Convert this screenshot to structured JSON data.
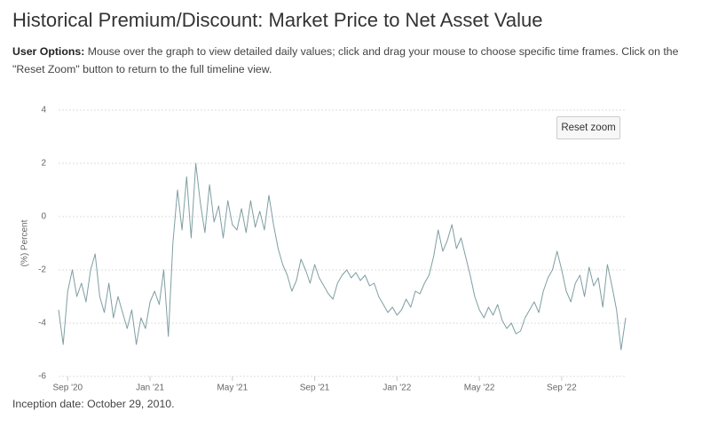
{
  "title": "Historical Premium/Discount: Market Price to Net Asset Value",
  "user_options": {
    "label": "User Options:",
    "text": "Mouse over the graph to view detailed daily values; click and drag your mouse to choose specific time frames. Click on the \"Reset Zoom\" button to return to the full timeline view."
  },
  "reset_button": "Reset zoom",
  "inception": "Inception date: October 29, 2010.",
  "chart_data": {
    "type": "line",
    "ylabel": "(%) Percent",
    "color": "#7f9ea2",
    "grid": true,
    "ylim": [
      -6,
      4
    ],
    "yticks": [
      -6,
      -4,
      -2,
      0,
      2,
      4
    ],
    "categories": [
      null,
      null,
      "Sep '20",
      null,
      null,
      null,
      null,
      null,
      null,
      null,
      null,
      null,
      null,
      null,
      null,
      null,
      null,
      null,
      null,
      null,
      "Jan '21",
      null,
      null,
      null,
      null,
      null,
      null,
      null,
      null,
      null,
      null,
      null,
      null,
      null,
      null,
      null,
      null,
      null,
      "May '21",
      null,
      null,
      null,
      null,
      null,
      null,
      null,
      null,
      null,
      null,
      null,
      null,
      null,
      null,
      null,
      null,
      null,
      "Sep '21",
      null,
      null,
      null,
      null,
      null,
      null,
      null,
      null,
      null,
      null,
      null,
      null,
      null,
      null,
      null,
      null,
      null,
      "Jan '22",
      null,
      null,
      null,
      null,
      null,
      null,
      null,
      null,
      null,
      null,
      null,
      null,
      null,
      null,
      null,
      null,
      null,
      "May '22",
      null,
      null,
      null,
      null,
      null,
      null,
      null,
      null,
      null,
      null,
      null,
      null,
      null,
      null,
      null,
      null,
      null,
      "Sep '22",
      null,
      null,
      null,
      null,
      null,
      null,
      null,
      null,
      null,
      null,
      null,
      null,
      null,
      null
    ],
    "values": [
      -3.5,
      -4.8,
      -2.8,
      -2.0,
      -3.0,
      -2.5,
      -3.2,
      -2.0,
      -1.4,
      -3.0,
      -3.6,
      -2.5,
      -3.8,
      -3.0,
      -3.6,
      -4.2,
      -3.5,
      -4.8,
      -3.8,
      -4.2,
      -3.2,
      -2.8,
      -3.3,
      -2.0,
      -4.5,
      -1.0,
      1.0,
      -0.5,
      1.5,
      -0.8,
      2.0,
      0.5,
      -0.6,
      1.2,
      -0.2,
      0.4,
      -0.8,
      0.6,
      -0.3,
      -0.5,
      0.3,
      -0.6,
      0.6,
      -0.4,
      0.2,
      -0.5,
      0.8,
      -0.3,
      -1.2,
      -1.8,
      -2.2,
      -2.8,
      -2.4,
      -1.6,
      -2.0,
      -2.5,
      -1.8,
      -2.3,
      -2.6,
      -2.9,
      -3.1,
      -2.5,
      -2.2,
      -2.0,
      -2.3,
      -2.1,
      -2.4,
      -2.2,
      -2.6,
      -2.5,
      -3.0,
      -3.3,
      -3.6,
      -3.4,
      -3.7,
      -3.5,
      -3.1,
      -3.4,
      -2.8,
      -2.9,
      -2.5,
      -2.2,
      -1.5,
      -0.5,
      -1.3,
      -0.9,
      -0.3,
      -1.2,
      -0.8,
      -1.5,
      -2.2,
      -3.0,
      -3.5,
      -3.8,
      -3.4,
      -3.7,
      -3.3,
      -3.9,
      -4.2,
      -4.0,
      -4.4,
      -4.3,
      -3.8,
      -3.5,
      -3.2,
      -3.6,
      -2.8,
      -2.3,
      -2.0,
      -1.3,
      -2.0,
      -2.8,
      -3.2,
      -2.5,
      -2.2,
      -3.0,
      -1.9,
      -2.6,
      -2.3,
      -3.4,
      -1.8,
      -2.6,
      -3.5,
      -5.0,
      -3.8
    ]
  }
}
